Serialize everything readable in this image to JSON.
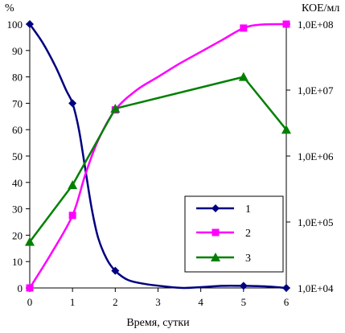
{
  "chart_data": {
    "type": "line",
    "xlabel": "Время, сутки",
    "ylabel_left": "%",
    "ylabel_right": "КОЕ/мл",
    "x_ticks": [
      "0",
      "1",
      "2",
      "3",
      "4",
      "5",
      "6"
    ],
    "y_left_ticks": [
      "0",
      "10",
      "20",
      "30",
      "40",
      "50",
      "60",
      "70",
      "80",
      "90",
      "100"
    ],
    "y_right_ticks": [
      "1,0E+04",
      "1,0E+05",
      "1,0E+06",
      "1,0E+07",
      "1,0E+08"
    ],
    "xlim": [
      0,
      6
    ],
    "ylim_left": [
      0,
      100
    ],
    "ylim_right": [
      10000,
      100000000
    ],
    "right_axis_scale": "log",
    "grid": false,
    "legend_position": "bottom-right",
    "series": [
      {
        "name": "1",
        "color": "#000080",
        "marker": "diamond",
        "axis": "left",
        "points": [
          [
            0,
            100
          ],
          [
            1,
            70
          ],
          [
            2,
            6.5
          ],
          [
            5,
            0.8
          ],
          [
            6,
            0
          ]
        ],
        "curve": [
          [
            0,
            100
          ],
          [
            0.3,
            93
          ],
          [
            0.6,
            84
          ],
          [
            0.85,
            75
          ],
          [
            1,
            70
          ],
          [
            1.15,
            60
          ],
          [
            1.3,
            45
          ],
          [
            1.45,
            30
          ],
          [
            1.6,
            19
          ],
          [
            1.8,
            11
          ],
          [
            2,
            6.5
          ],
          [
            2.3,
            3
          ],
          [
            2.7,
            1.5
          ],
          [
            3.2,
            0.5
          ],
          [
            3.6,
            0
          ],
          [
            4,
            0.3
          ],
          [
            4.5,
            0.8
          ],
          [
            5,
            0.8
          ],
          [
            5.5,
            0.6
          ],
          [
            6,
            0
          ]
        ]
      },
      {
        "name": "2",
        "color": "#ff00ff",
        "marker": "square",
        "axis": "left",
        "points": [
          [
            0,
            0
          ],
          [
            1,
            27.5
          ],
          [
            2,
            67.5
          ],
          [
            5,
            98.5
          ],
          [
            6,
            100
          ]
        ],
        "curve": [
          [
            0,
            0
          ],
          [
            0.5,
            13
          ],
          [
            1,
            27.5
          ],
          [
            1.3,
            43
          ],
          [
            1.6,
            56
          ],
          [
            2,
            67.5
          ],
          [
            2.5,
            75
          ],
          [
            3,
            80
          ],
          [
            3.5,
            85
          ],
          [
            4,
            89.5
          ],
          [
            4.5,
            94
          ],
          [
            5,
            98.5
          ],
          [
            5.4,
            99.8
          ],
          [
            6,
            100
          ]
        ]
      },
      {
        "name": "3",
        "color": "#008000",
        "marker": "triangle",
        "axis": "left",
        "points": [
          [
            0,
            17.5
          ],
          [
            1,
            39
          ],
          [
            2,
            68
          ],
          [
            5,
            80
          ],
          [
            6,
            60
          ]
        ],
        "curve": [
          [
            0,
            17.5
          ],
          [
            1,
            39
          ],
          [
            2,
            68
          ],
          [
            5,
            80
          ],
          [
            6,
            60
          ]
        ]
      }
    ]
  }
}
